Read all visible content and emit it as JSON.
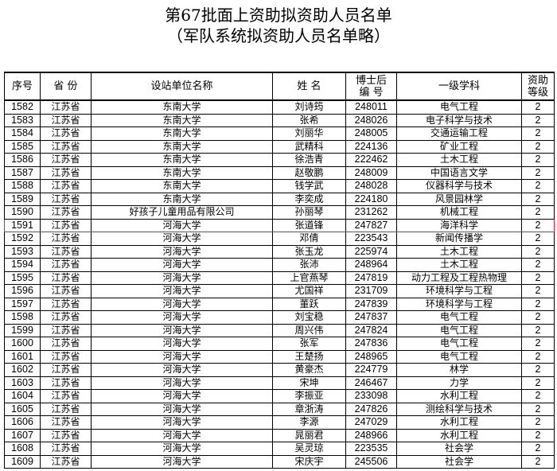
{
  "title": "第67批面上资助拟资助人员名单",
  "subtitle": "（军队系统拟资助人员名单略）",
  "headers": [
    "序号",
    "省 份",
    "设站单位名称",
    "姓 名",
    "博士后\n编 号",
    "一级学科",
    "资助\n等级"
  ],
  "rows": [
    [
      "1582",
      "江苏省",
      "东南大学",
      "刘诗筠",
      "248011",
      "电气工程",
      "2"
    ],
    [
      "1583",
      "江苏省",
      "东南大学",
      "张希",
      "248026",
      "电子科学与技术",
      "2"
    ],
    [
      "1584",
      "江苏省",
      "东南大学",
      "刘丽华",
      "248005",
      "交通运输工程",
      "2"
    ],
    [
      "1585",
      "江苏省",
      "东南大学",
      "武精科",
      "224136",
      "矿业工程",
      "2"
    ],
    [
      "1586",
      "江苏省",
      "东南大学",
      "徐浩青",
      "222462",
      "土木工程",
      "2"
    ],
    [
      "1587",
      "江苏省",
      "东南大学",
      "赵敬鹏",
      "248009",
      "中国语言文学",
      "2"
    ],
    [
      "1588",
      "江苏省",
      "东南大学",
      "钱学武",
      "248028",
      "仪器科学与技术",
      "2"
    ],
    [
      "1589",
      "江苏省",
      "东南大学",
      "李奕成",
      "224180",
      "风景园林学",
      "2"
    ],
    [
      "1590",
      "江苏省",
      "好孩子儿童用品有限公司",
      "孙丽琴",
      "231262",
      "机械工程",
      "2"
    ],
    [
      "1591",
      "江苏省",
      "河海大学",
      "张道锋",
      "247827",
      "海洋科学",
      "2"
    ],
    [
      "1592",
      "江苏省",
      "河海大学",
      "邓倩",
      "223543",
      "新闻传播学",
      "2"
    ],
    [
      "1593",
      "江苏省",
      "河海大学",
      "张玉龙",
      "225974",
      "土木工程",
      "2"
    ],
    [
      "1594",
      "江苏省",
      "河海大学",
      "张沛",
      "248964",
      "土木工程",
      "2"
    ],
    [
      "1595",
      "江苏省",
      "河海大学",
      "上官燕琴",
      "247819",
      "动力工程及工程热物理",
      "2"
    ],
    [
      "1596",
      "江苏省",
      "河海大学",
      "尤国祥",
      "231709",
      "环境科学与工程",
      "2"
    ],
    [
      "1597",
      "江苏省",
      "河海大学",
      "董跃",
      "247839",
      "环境科学与工程",
      "2"
    ],
    [
      "1598",
      "江苏省",
      "河海大学",
      "刘宝稳",
      "247837",
      "电气工程",
      "2"
    ],
    [
      "1599",
      "江苏省",
      "河海大学",
      "周兴伟",
      "247824",
      "电气工程",
      "2"
    ],
    [
      "1600",
      "江苏省",
      "河海大学",
      "张军",
      "247836",
      "电气工程",
      "2"
    ],
    [
      "1601",
      "江苏省",
      "河海大学",
      "王楚扬",
      "248965",
      "电气工程",
      "2"
    ],
    [
      "1602",
      "江苏省",
      "河海大学",
      "黄豪杰",
      "224779",
      "林学",
      "2"
    ],
    [
      "1603",
      "江苏省",
      "河海大学",
      "宋坤",
      "246467",
      "力学",
      "2"
    ],
    [
      "1604",
      "江苏省",
      "河海大学",
      "李振亚",
      "233098",
      "水利工程",
      "2"
    ],
    [
      "1605",
      "江苏省",
      "河海大学",
      "章浙涛",
      "247826",
      "测绘科学与技术",
      "2"
    ],
    [
      "1606",
      "江苏省",
      "河海大学",
      "李源",
      "247029",
      "水利工程",
      "2"
    ],
    [
      "1607",
      "江苏省",
      "河海大学",
      "晁丽君",
      "248966",
      "水利工程",
      "2"
    ],
    [
      "1608",
      "江苏省",
      "河海大学",
      "吴灵琼",
      "223535",
      "社会学",
      "2"
    ],
    [
      "1609",
      "江苏省",
      "河海大学",
      "宋庆宇",
      "245506",
      "社会学",
      "2"
    ]
  ],
  "highlighted_row": "1591",
  "highlight_color": "#e02020"
}
